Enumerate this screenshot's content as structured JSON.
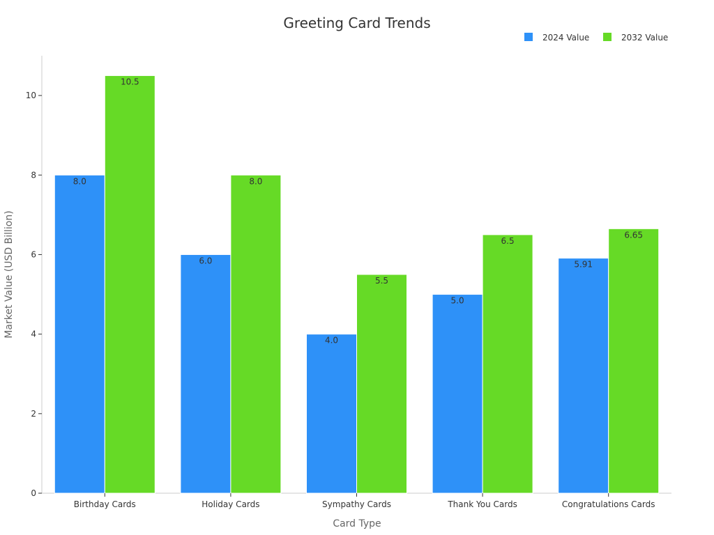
{
  "chart_data": {
    "type": "bar",
    "title": "Greeting Card Trends",
    "xlabel": "Card Type",
    "ylabel": "Market Value (USD Billion)",
    "categories": [
      "Birthday Cards",
      "Holiday Cards",
      "Sympathy Cards",
      "Thank You Cards",
      "Congratulations Cards"
    ],
    "series": [
      {
        "name": "2024 Value",
        "values": [
          8.0,
          6.0,
          4.0,
          5.0,
          5.91
        ],
        "labels": [
          "8.0",
          "6.0",
          "4.0",
          "5.0",
          "5.91"
        ],
        "color": "#2E91F8"
      },
      {
        "name": "2032 Value",
        "values": [
          10.5,
          8.0,
          5.5,
          6.5,
          6.65
        ],
        "labels": [
          "10.5",
          "8.0",
          "5.5",
          "6.5",
          "6.65"
        ],
        "color": "#66DA26"
      }
    ],
    "ylim": [
      0,
      11
    ],
    "yticks": [
      "0",
      "2",
      "4",
      "6",
      "8",
      "10"
    ],
    "grid": false,
    "legend_position": "top-right"
  }
}
